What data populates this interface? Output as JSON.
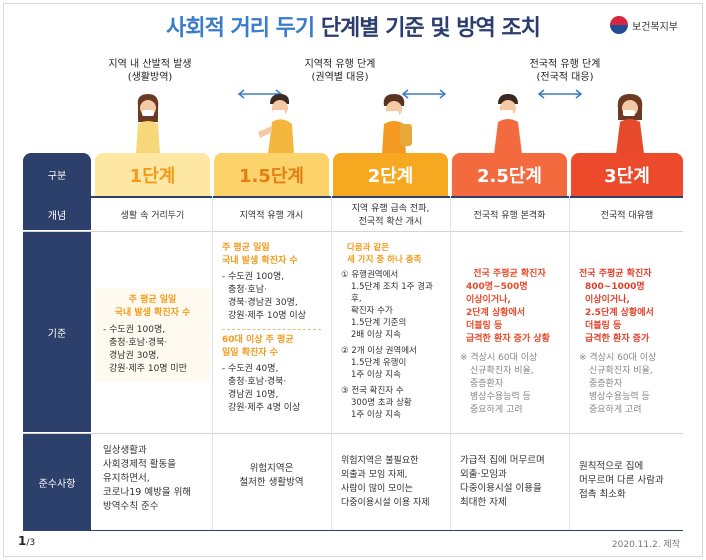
{
  "title": {
    "part1": "사회적 거리 두기",
    "part2": "단계별 기준 및 방역 조치"
  },
  "logo": {
    "text": "보건복지부",
    "icon": "taegeuk-icon"
  },
  "stages": {
    "s1": {
      "line1": "지역 내 산발적 발생",
      "line2": "(생활방역)"
    },
    "s2": {
      "line1": "지역적 유행 단계",
      "line2": "(권역별 대응)"
    },
    "s3": {
      "line1": "전국적 유행 단계",
      "line2": "(전국적 대응)"
    }
  },
  "headers": {
    "gubun": "구분",
    "l1": "1단계",
    "l15": "1.5단계",
    "l2": "2단계",
    "l25": "2.5단계",
    "l3": "3단계"
  },
  "rows": {
    "concept": "개념",
    "criteria": "기준",
    "rules": "준수사항"
  },
  "concept": {
    "l1": "생활 속 거리두기",
    "l15": "지역적 유행 개시",
    "l2a": "지역 유행 급속 전파,",
    "l2b": "전국적 확산 개시",
    "l25": "전국적 유행 본격화",
    "l3": "전국적 대유행"
  },
  "criteria": {
    "l1": {
      "h1": "주 평균 일일",
      "h2": "국내 발생 확진자 수",
      "b1": "- 수도권 100명,",
      "b2": "충청·호남·경북·",
      "b3": "경남권 30명,",
      "b4": "강원·제주 10명 미만"
    },
    "l15": {
      "h1": "주 평균 일일",
      "h2": "국내 발생 확진자 수",
      "b1": "- 수도권 100명,",
      "b2": "충청·호남·",
      "b3": "경북·경남권 30명,",
      "b4": "강원·제주 10명 이상",
      "h3": "60대 이상 주 평균",
      "h4": "일일 확진자 수",
      "c1": "- 수도권 40명,",
      "c2": "충청·호남·경북·",
      "c3": "경남권 10명,",
      "c4": "강원·제주 4명 이상"
    },
    "l2": {
      "h1": "다음과 같은",
      "h2": "세 가지 중 하나 충족",
      "a1": "① 유행권역에서",
      "a2": "1.5단계 조치 1주 경과 후,",
      "a3": "확진자 수가",
      "a4": "1.5단계 기준의",
      "a5": "2배 이상 지속",
      "b1": "② 2개 이상 권역에서",
      "b2": "1.5단계 유행이",
      "b3": "1주 이상 지속",
      "c1": "③ 전국 확진자 수",
      "c2": "300명 초과 상황",
      "c3": "1주 이상 지속"
    },
    "l25": {
      "h1": "전국 주평균 확진자",
      "h2": "400명~500명",
      "h3": "이상이거나,",
      "h4": "2단계 상황에서",
      "h5": "더블링 등",
      "h6": "급격한 환자 증가 상황",
      "n1": "※ 격상시 60대 이상",
      "n2": "신규확진자 비율,",
      "n3": "중증환자",
      "n4": "병상수용능력 등",
      "n5": "중요하게 고려"
    },
    "l3": {
      "h1": "전국 주평균 확진자",
      "h2": "800~1000명",
      "h3": "이상이거나,",
      "h4": "2.5단계 상황에서",
      "h5": "더블링 등",
      "h6": "급격한 환자 증가",
      "n1": "※ 격상시 60대 이상",
      "n2": "신규확진자 비율,",
      "n3": "중증환자",
      "n4": "병상수용능력 등",
      "n5": "중요하게 고려"
    }
  },
  "rules": {
    "l1": {
      "a": "일상생활과",
      "b": "사회경제적 활동을",
      "c": "유지하면서,",
      "d": "코로나19 예방을 위해",
      "e": "방역수칙 준수"
    },
    "l15": {
      "a": "위험지역은",
      "b": "철저한 생활방역"
    },
    "l2": {
      "a": "위험지역은 불필요한",
      "b": "외출과 모임 자제,",
      "c": "사람이 많이 모이는",
      "d": "다중이용시설 이용 자제"
    },
    "l25": {
      "a": "가급적 집에 머무르며",
      "b": "외출·모임과",
      "c": "다중이용시설 이용을",
      "d": "최대한 자제"
    },
    "l3": {
      "a": "원칙적으로 집에",
      "b": "머무르며 다른 사람과",
      "c": "접촉 최소화"
    }
  },
  "footer": {
    "page": "1",
    "total": "/3",
    "date": "2020.11.2. 제작"
  },
  "colors": {
    "navy": "#2d3f6b",
    "l1": "#fde7a3",
    "l15": "#fbd36a",
    "l2": "#f7a821",
    "l25": "#f46a3f",
    "l3": "#ec4a2b"
  }
}
